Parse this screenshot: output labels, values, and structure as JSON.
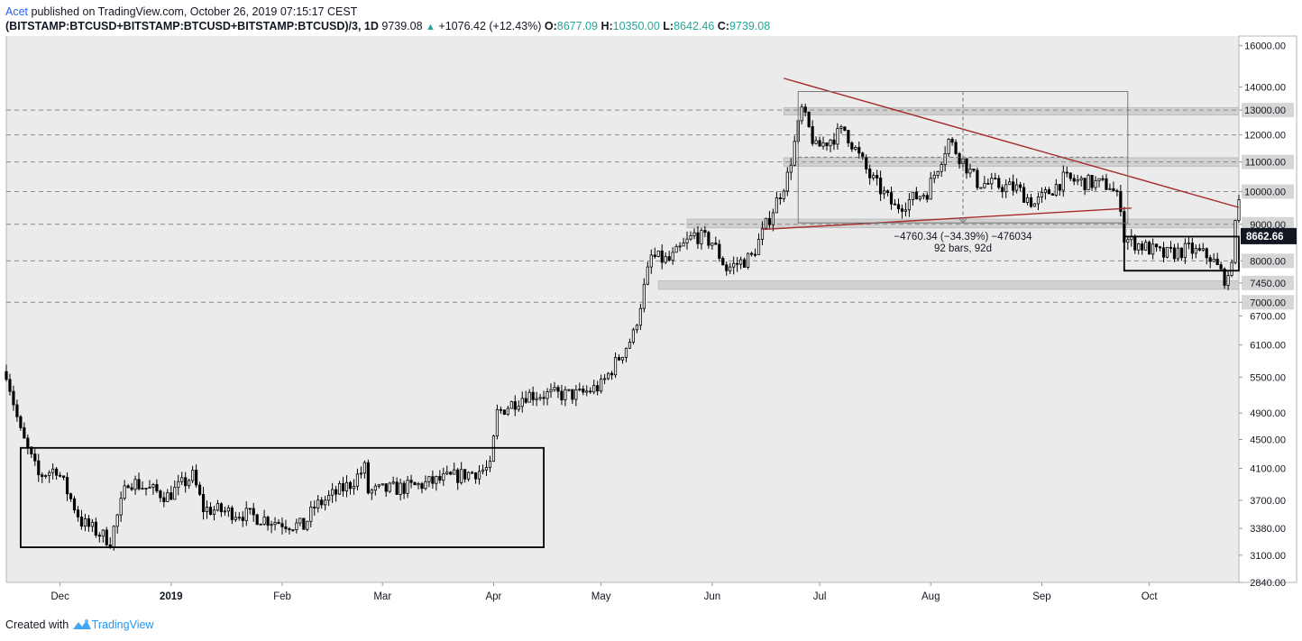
{
  "header": {
    "author": "Acet",
    "published_text": "published on TradingView.com, October 26, 2019 07:15:17 CEST",
    "symbol": "(BITSTAMP:BTCUSD+BITSTAMP:BTCUSD+BITSTAMP:BTCUSD)/3, 1D",
    "last": "9739.08",
    "change": "+1076.42 (+12.43%)",
    "o_label": "O:",
    "o_value": "8677.09",
    "h_label": "H:",
    "h_value": "10350.00",
    "l_label": "L:",
    "l_value": "8642.46",
    "c_label": "C:",
    "c_value": "9739.08"
  },
  "footer": {
    "created_with": "Created with",
    "brand": "TradingView"
  },
  "colors": {
    "up": "#ffffff",
    "down": "#000000",
    "trendline": "#a52a2a",
    "zone": "#c8c8c8",
    "background": "#ebebeb",
    "accent": "#26a69a"
  },
  "chart_data": {
    "type": "candlestick",
    "title": "",
    "xlabel": "",
    "ylabel": "",
    "scale": "log",
    "ylim": [
      2840,
      16500
    ],
    "y_ticks": [
      16000,
      14000,
      13000,
      12000,
      11000,
      10000,
      9000,
      8000,
      7450,
      7000,
      6700,
      6100,
      5500,
      4900,
      4500,
      4100,
      3700,
      3380,
      3100,
      2840
    ],
    "y_tick_labels": [
      "16000.00",
      "14000.00",
      "13000.00",
      "12000.00",
      "11000.00",
      "10000.00",
      "9000.00",
      "8000.00",
      "7450.00",
      "7000.00",
      "6700.00",
      "6100.00",
      "5500.00",
      "4900.00",
      "4500.00",
      "4100.00",
      "3700.00",
      "3380.00",
      "3100.00",
      "2840.00"
    ],
    "price_label": "8662.66",
    "x_range": [
      "2018-11-16",
      "2019-10-26"
    ],
    "x_ticks": [
      {
        "date": "2018-12-01",
        "label": "Dec",
        "bold": false
      },
      {
        "date": "2019-01-01",
        "label": "2019",
        "bold": true
      },
      {
        "date": "2019-02-01",
        "label": "Feb",
        "bold": false
      },
      {
        "date": "2019-03-01",
        "label": "Mar",
        "bold": false
      },
      {
        "date": "2019-04-01",
        "label": "Apr",
        "bold": false
      },
      {
        "date": "2019-05-01",
        "label": "May",
        "bold": false
      },
      {
        "date": "2019-06-01",
        "label": "Jun",
        "bold": false
      },
      {
        "date": "2019-07-01",
        "label": "Jul",
        "bold": false
      },
      {
        "date": "2019-08-01",
        "label": "Aug",
        "bold": false
      },
      {
        "date": "2019-09-01",
        "label": "Sep",
        "bold": false
      },
      {
        "date": "2019-10-01",
        "label": "Oct",
        "bold": false
      }
    ],
    "close_anchors": [
      [
        "2018-11-16",
        5600
      ],
      [
        "2018-11-20",
        4600
      ],
      [
        "2018-11-25",
        4000
      ],
      [
        "2018-11-30",
        4100
      ],
      [
        "2018-12-07",
        3450
      ],
      [
        "2018-12-15",
        3250
      ],
      [
        "2018-12-20",
        3950
      ],
      [
        "2018-12-25",
        3850
      ],
      [
        "2018-12-31",
        3750
      ],
      [
        "2019-01-07",
        4000
      ],
      [
        "2019-01-10",
        3600
      ],
      [
        "2019-01-20",
        3550
      ],
      [
        "2019-01-31",
        3450
      ],
      [
        "2019-02-07",
        3400
      ],
      [
        "2019-02-10",
        3620
      ],
      [
        "2019-02-20",
        3900
      ],
      [
        "2019-02-24",
        4100
      ],
      [
        "2019-02-25",
        3800
      ],
      [
        "2019-03-10",
        3870
      ],
      [
        "2019-03-20",
        3980
      ],
      [
        "2019-03-31",
        4100
      ],
      [
        "2019-04-02",
        4900
      ],
      [
        "2019-04-10",
        5200
      ],
      [
        "2019-04-25",
        5200
      ],
      [
        "2019-05-01",
        5350
      ],
      [
        "2019-05-10",
        6300
      ],
      [
        "2019-05-15",
        8100
      ],
      [
        "2019-05-20",
        8000
      ],
      [
        "2019-05-27",
        8700
      ],
      [
        "2019-06-01",
        8500
      ],
      [
        "2019-06-05",
        7800
      ],
      [
        "2019-06-12",
        8100
      ],
      [
        "2019-06-17",
        9200
      ],
      [
        "2019-06-22",
        10500
      ],
      [
        "2019-06-26",
        13000
      ],
      [
        "2019-06-30",
        11500
      ],
      [
        "2019-07-08",
        12200
      ],
      [
        "2019-07-15",
        10500
      ],
      [
        "2019-07-22",
        9500
      ],
      [
        "2019-07-31",
        10000
      ],
      [
        "2019-08-06",
        11800
      ],
      [
        "2019-08-14",
        10300
      ],
      [
        "2019-08-25",
        10100
      ],
      [
        "2019-08-30",
        9600
      ],
      [
        "2019-09-07",
        10400
      ],
      [
        "2019-09-20",
        10200
      ],
      [
        "2019-09-23",
        9600
      ],
      [
        "2019-09-24",
        8600
      ],
      [
        "2019-10-05",
        8150
      ],
      [
        "2019-10-12",
        8300
      ],
      [
        "2019-10-18",
        8100
      ],
      [
        "2019-10-23",
        7450
      ],
      [
        "2019-10-26",
        9739
      ]
    ],
    "annotations": {
      "boxes": [
        {
          "from": "2018-11-20",
          "to": "2019-04-15",
          "low": 3180,
          "high": 4380
        },
        {
          "from": "2019-09-24",
          "to": "2019-10-26",
          "low": 7750,
          "high": 8650
        }
      ],
      "zones": [
        {
          "from": "2019-06-21",
          "to": "2019-10-26",
          "low": 12800,
          "high": 13100
        },
        {
          "from": "2019-06-21",
          "to": "2019-10-26",
          "low": 10850,
          "high": 11150
        },
        {
          "from": "2019-05-25",
          "to": "2019-10-26",
          "low": 8900,
          "high": 9150
        },
        {
          "from": "2019-05-17",
          "to": "2019-10-26",
          "low": 7300,
          "high": 7500
        }
      ],
      "dashed_levels": [
        13000,
        12000,
        11000,
        10000,
        9000,
        8000,
        7000
      ],
      "trendlines": [
        {
          "from": [
            "2019-06-21",
            14400
          ],
          "to": [
            "2019-10-26",
            9500
          ]
        },
        {
          "from": [
            "2019-06-15",
            8850
          ],
          "to": [
            "2019-09-26",
            9480
          ]
        }
      ],
      "measure": {
        "from": [
          "2019-06-25",
          13800
        ],
        "to": [
          "2019-09-25",
          9040
        ],
        "label_1": "−4760.34 (−34.39%) −476034",
        "label_2": "92 bars, 92d"
      }
    }
  }
}
